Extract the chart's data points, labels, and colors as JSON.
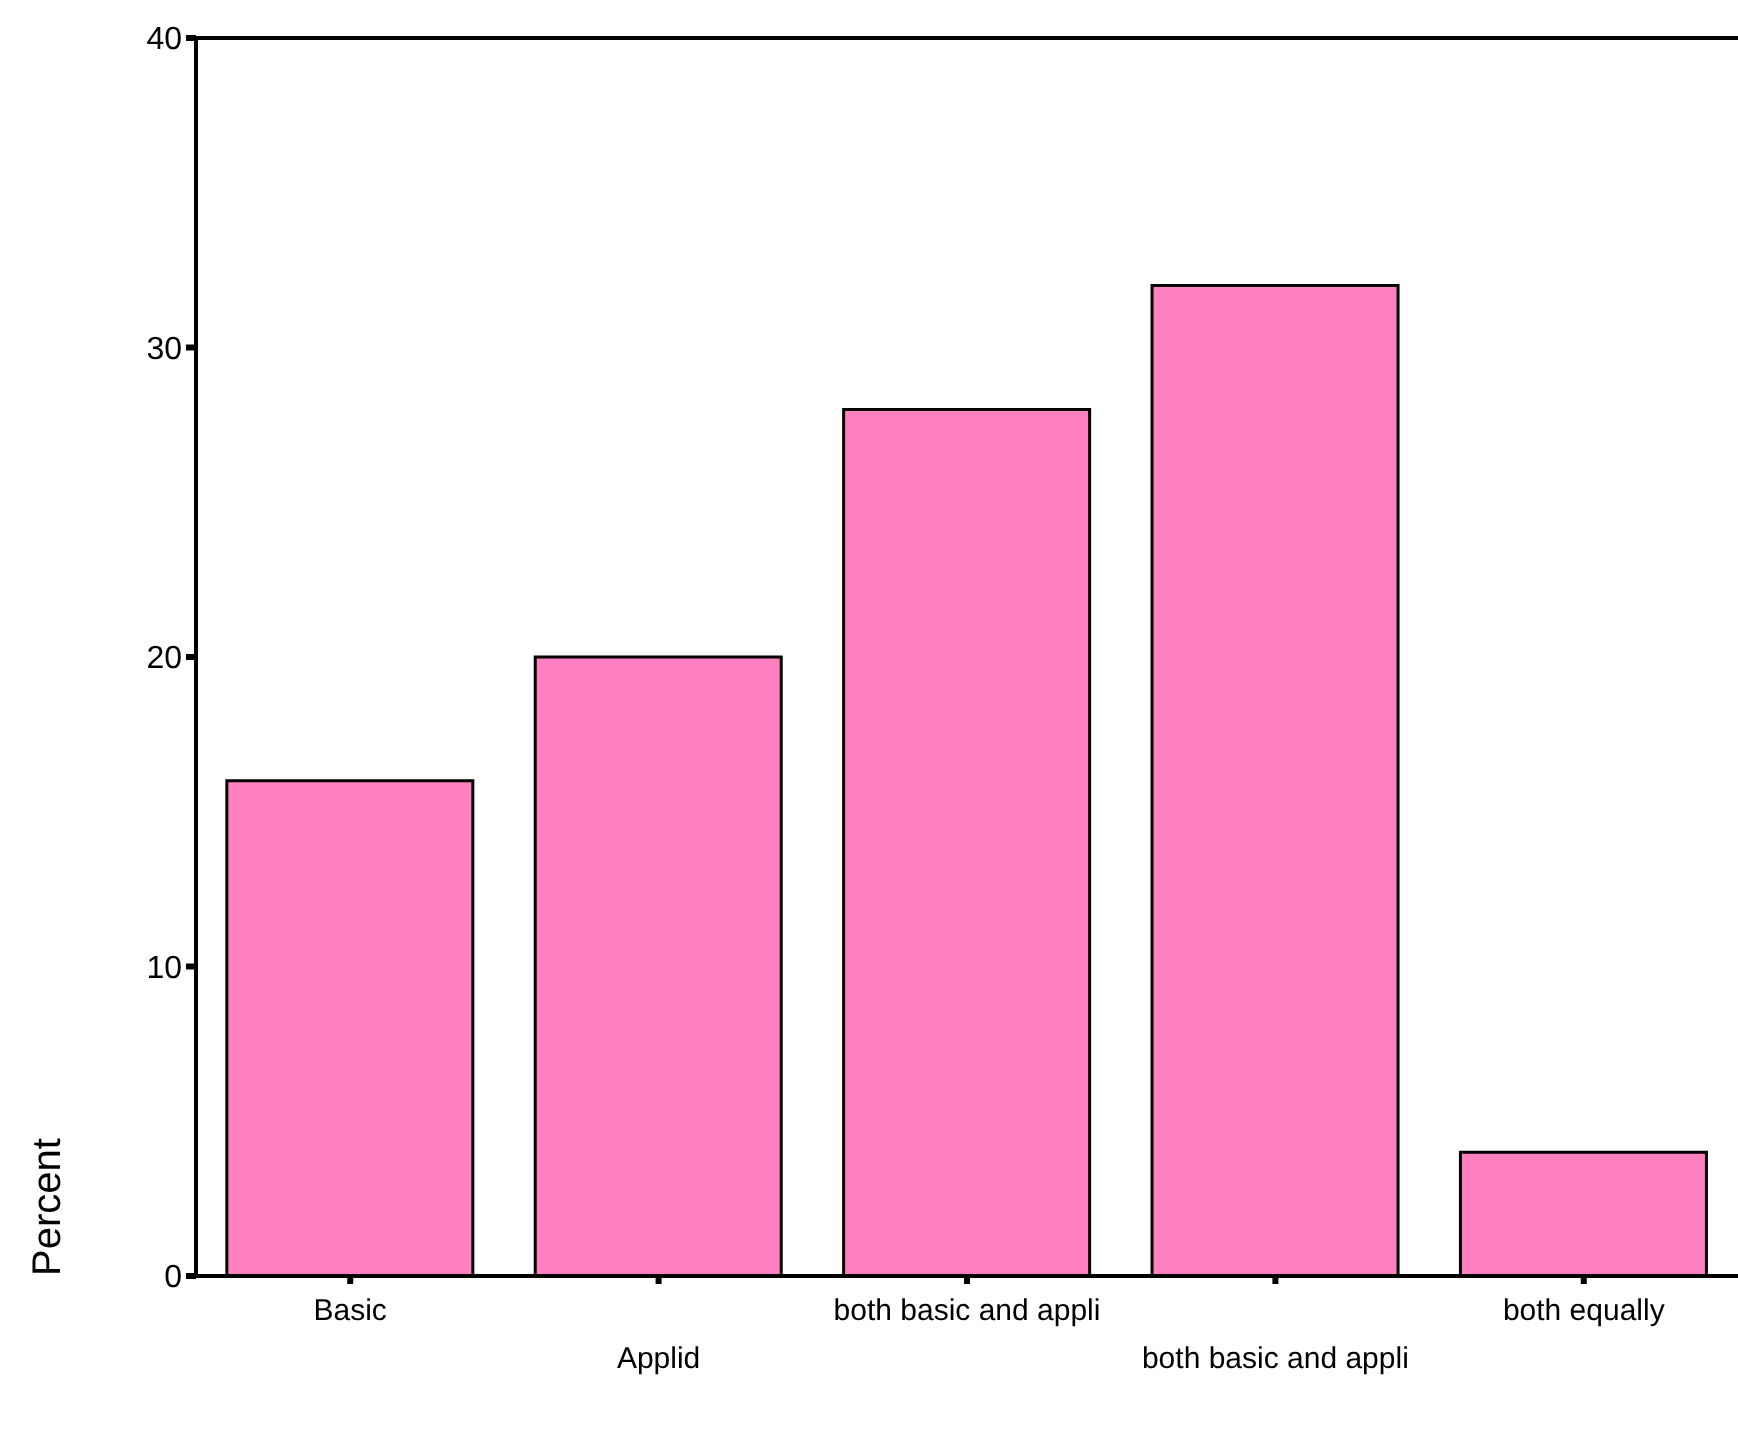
{
  "chart_data": {
    "type": "bar",
    "ylabel": "Percent",
    "categories": [
      "Basic",
      "Applid",
      "both basic and appli",
      "both basic and appli",
      "both equally"
    ],
    "values": [
      16,
      20,
      28,
      32,
      4
    ],
    "color": "#ff80c0",
    "ylim": [
      0,
      40
    ],
    "yticks": [
      0,
      10,
      20,
      30,
      40
    ]
  }
}
